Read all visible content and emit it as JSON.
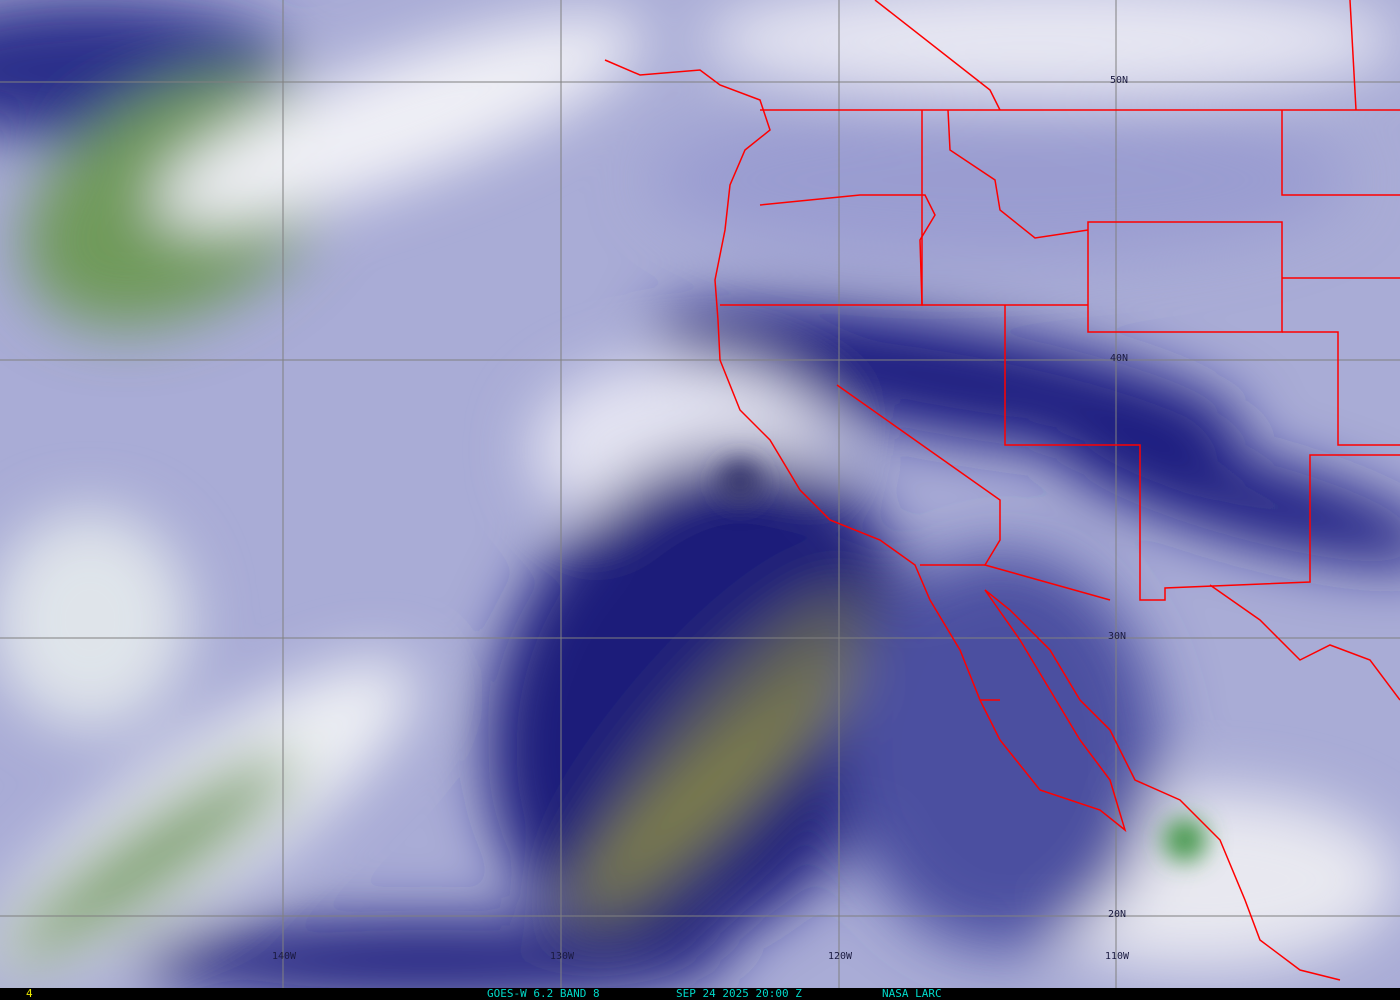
{
  "map": {
    "latitude_labels": [
      "50N",
      "40N",
      "30N",
      "20N"
    ],
    "longitude_labels": [
      "140W",
      "130W",
      "120W",
      "110W"
    ],
    "border_color": "#ff0000",
    "grid_color": "#808080"
  },
  "footer": {
    "frame_number": "4",
    "product": "GOES-W 6.2 BAND 8",
    "datetime": "SEP 24 2025 20:00 Z",
    "credit": "NASA LARC",
    "text_color": "#00d8c8",
    "frame_color": "#e8e800"
  }
}
